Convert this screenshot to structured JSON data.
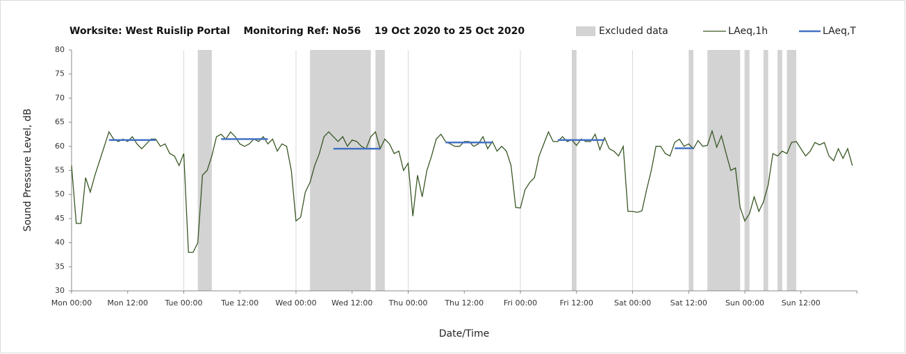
{
  "chart_data": {
    "type": "line",
    "title": "Worksite: West Ruislip Portal    Monitoring Ref: No56    19 Oct 2020 to 25 Oct 2020",
    "xlabel": "Date/Time",
    "ylabel": "Sound Pressure Level, dB",
    "xlim": [
      0,
      168
    ],
    "ylim": [
      30,
      80
    ],
    "yticks": [
      30,
      35,
      40,
      45,
      50,
      55,
      60,
      65,
      70,
      75,
      80
    ],
    "xticks": [
      {
        "value": 0,
        "label": "Mon 00:00"
      },
      {
        "value": 12,
        "label": "Mon 12:00"
      },
      {
        "value": 24,
        "label": "Tue 00:00"
      },
      {
        "value": 36,
        "label": "Tue 12:00"
      },
      {
        "value": 48,
        "label": "Wed 00:00"
      },
      {
        "value": 60,
        "label": "Wed 12:00"
      },
      {
        "value": 72,
        "label": "Thu 00:00"
      },
      {
        "value": 84,
        "label": "Thu 12:00"
      },
      {
        "value": 96,
        "label": "Fri 00:00"
      },
      {
        "value": 108,
        "label": "Fri 12:00"
      },
      {
        "value": 120,
        "label": "Sat 00:00"
      },
      {
        "value": 132,
        "label": "Sat 12:00"
      },
      {
        "value": 144,
        "label": "Sun 00:00"
      },
      {
        "value": 156,
        "label": "Sun 12:00"
      }
    ],
    "grid": true,
    "excluded": {
      "name": "Excluded data",
      "color": "#d3d3d3",
      "ranges": [
        [
          27,
          30
        ],
        [
          51,
          64
        ],
        [
          65,
          67
        ],
        [
          107,
          108
        ],
        [
          132,
          133
        ],
        [
          136,
          143
        ],
        [
          144,
          145
        ],
        [
          148,
          149
        ],
        [
          151,
          152
        ],
        [
          153,
          155
        ]
      ]
    },
    "series": [
      {
        "name": "LAeq,1h",
        "color": "#375623",
        "x": [
          0,
          1,
          2,
          3,
          4,
          5,
          6,
          7,
          8,
          9,
          10,
          11,
          12,
          13,
          14,
          15,
          16,
          17,
          18,
          19,
          20,
          21,
          22,
          23,
          24,
          25,
          26,
          27,
          28,
          29,
          30,
          31,
          32,
          33,
          34,
          35,
          36,
          37,
          38,
          39,
          40,
          41,
          42,
          43,
          44,
          45,
          46,
          47,
          48,
          49,
          50,
          51,
          52,
          53,
          54,
          55,
          56,
          57,
          58,
          59,
          60,
          61,
          62,
          63,
          64,
          65,
          66,
          67,
          68,
          69,
          70,
          71,
          72,
          73,
          74,
          75,
          76,
          77,
          78,
          79,
          80,
          81,
          82,
          83,
          84,
          85,
          86,
          87,
          88,
          89,
          90,
          91,
          92,
          93,
          94,
          95,
          96,
          97,
          98,
          99,
          100,
          101,
          102,
          103,
          104,
          105,
          106,
          107,
          108,
          109,
          110,
          111,
          112,
          113,
          114,
          115,
          116,
          117,
          118,
          119,
          120,
          121,
          122,
          123,
          124,
          125,
          126,
          127,
          128,
          129,
          130,
          131,
          132,
          133,
          134,
          135,
          136,
          137,
          138,
          139,
          140,
          141,
          142,
          143,
          144,
          145,
          146,
          147,
          148,
          149,
          150,
          151,
          152,
          153,
          154,
          155,
          156,
          157,
          158,
          159,
          160,
          161,
          162,
          163,
          164,
          165,
          166,
          167
        ],
        "values": [
          56,
          44,
          44,
          53.5,
          50.5,
          54,
          57,
          60,
          63,
          61.5,
          61,
          61.5,
          61,
          62,
          60.5,
          59.5,
          60.5,
          61.5,
          61.5,
          60,
          60.5,
          58.5,
          58,
          56,
          58.5,
          38,
          38,
          40,
          54,
          55,
          58,
          62,
          62.5,
          61.5,
          63,
          62,
          60.5,
          60,
          60.5,
          61.5,
          61,
          62,
          60.5,
          61.5,
          59,
          60.5,
          60,
          55,
          44.5,
          45.3,
          50.5,
          52.5,
          56,
          58.5,
          62,
          63,
          62,
          61,
          62,
          60,
          61.3,
          61,
          60,
          59.5,
          62,
          63,
          59.5,
          61.5,
          60.5,
          58.5,
          59,
          55,
          56.5,
          45.5,
          54,
          49.5,
          55,
          58,
          61.5,
          62.5,
          61,
          60.5,
          60,
          60,
          61,
          61,
          60,
          60.5,
          62,
          59.5,
          61,
          59,
          60,
          59,
          56,
          47.3,
          47.2,
          51,
          52.5,
          53.5,
          58,
          60.5,
          63,
          61,
          61,
          62,
          61,
          61.3,
          60.2,
          61.5,
          61,
          61,
          62.5,
          59.3,
          61.8,
          59.5,
          59,
          58,
          60,
          46.5,
          46.5,
          46.3,
          46.6,
          51,
          55,
          60,
          60,
          58.5,
          58,
          60.8,
          61.5,
          60,
          60.5,
          59.5,
          61.2,
          60,
          60.2,
          63.2,
          59.8,
          62.2,
          58.5,
          55,
          55.5,
          47.3,
          44.5,
          46,
          49.5,
          46.5,
          48.5,
          52,
          58.5,
          58,
          59,
          58.5,
          60.8,
          61,
          59.5,
          58,
          59,
          60.8,
          60.3,
          60.8,
          58,
          57,
          59.5,
          57.5,
          59.5,
          56
        ]
      }
    ],
    "segments": {
      "name": "LAeq,T",
      "color": "#4472c4",
      "items": [
        {
          "x": [
            8,
            18
          ],
          "value": 61.3
        },
        {
          "x": [
            32,
            42
          ],
          "value": 61.5
        },
        {
          "x": [
            56,
            66
          ],
          "value": 59.5
        },
        {
          "x": [
            80,
            90
          ],
          "value": 60.8
        },
        {
          "x": [
            104,
            114
          ],
          "value": 61.3
        },
        {
          "x": [
            129,
            133
          ],
          "value": 59.6
        }
      ]
    }
  }
}
